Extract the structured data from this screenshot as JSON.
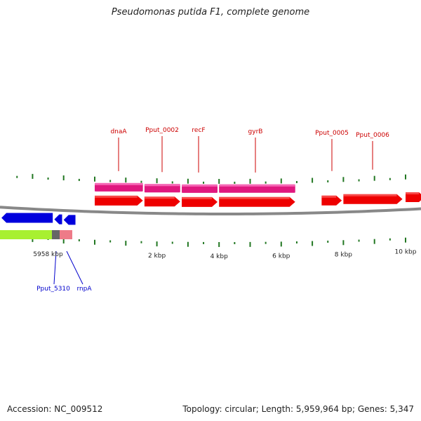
{
  "title": "Pseudomonas putida F1, complete genome",
  "accession_label": "Accession: NC_009512",
  "summary_label": "Topology: circular; Length: 5,959,964 bp; Genes: 5,347",
  "colors": {
    "forward_gene": "#ee0000",
    "reverse_gene": "#0000dd",
    "cds_band": "#e0187f",
    "rna_band": "#a8f030",
    "rna_dark": "#666666",
    "rna_pink": "#ee7b88",
    "backbone": "#888888",
    "ticks": "#227722",
    "forward_label": "#cc0000",
    "reverse_label": "#0000cc"
  },
  "scale_labels": [
    {
      "text": "5958 kbp",
      "kbp": -0.96
    },
    {
      "text": "2 kbp",
      "kbp": 2
    },
    {
      "text": "4 kbp",
      "kbp": 4
    },
    {
      "text": "6 kbp",
      "kbp": 6
    },
    {
      "text": "8 kbp",
      "kbp": 8
    },
    {
      "text": "10 kbp",
      "kbp": 10
    }
  ],
  "forward_genes": [
    {
      "name": "dnaA",
      "start_kbp": 0.0,
      "end_kbp": 1.55,
      "labeled": true
    },
    {
      "name": "Pput_0002",
      "start_kbp": 1.6,
      "end_kbp": 2.75,
      "labeled": true
    },
    {
      "name": "recF",
      "start_kbp": 2.8,
      "end_kbp": 3.95,
      "labeled": true
    },
    {
      "name": "gyrB",
      "start_kbp": 4.0,
      "end_kbp": 6.45,
      "labeled": true
    },
    {
      "name": "Pput_0005",
      "start_kbp": 7.3,
      "end_kbp": 7.95,
      "labeled": true
    },
    {
      "name": "Pput_0006",
      "start_kbp": 8.0,
      "end_kbp": 9.9,
      "labeled": true
    },
    {
      "name": "",
      "start_kbp": 10.0,
      "end_kbp": 10.8,
      "labeled": false
    }
  ],
  "reverse_genes": [
    {
      "name": "",
      "start_kbp": -3.0,
      "end_kbp": -1.35,
      "labeled": false
    },
    {
      "name": "Pput_5310",
      "start_kbp": -1.3,
      "end_kbp": -1.05,
      "labeled": true
    },
    {
      "name": "rnpA",
      "start_kbp": -1.0,
      "end_kbp": -0.62,
      "labeled": true
    }
  ],
  "cds_bands": [
    {
      "gene": "dnaA",
      "start_kbp": 0.0,
      "end_kbp": 1.55
    },
    {
      "gene": "Pput_0002",
      "start_kbp": 1.6,
      "end_kbp": 2.75
    },
    {
      "gene": "recF",
      "start_kbp": 2.8,
      "end_kbp": 3.95
    },
    {
      "gene": "gyrB",
      "start_kbp": 4.0,
      "end_kbp": 6.45
    }
  ]
}
